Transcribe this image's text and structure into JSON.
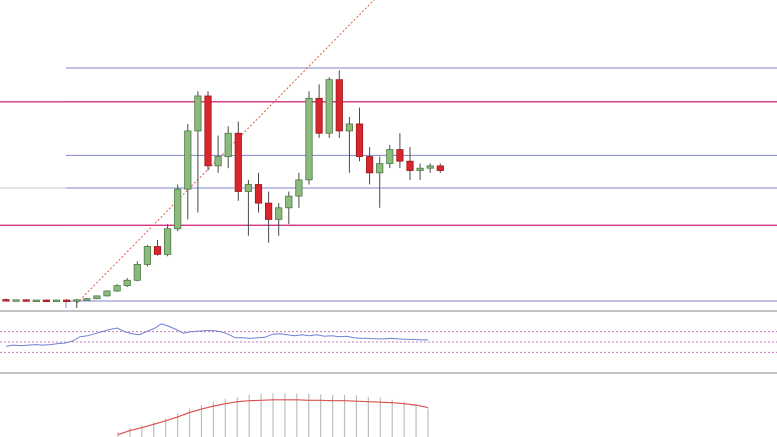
{
  "colors": {
    "bull_fill": "#8cba7e",
    "bull_stroke": "#4d7a42",
    "bear_fill": "#d9262c",
    "bear_stroke": "#9c1a1e",
    "wick": "#4a4a4a",
    "level_line": "#7f86c9",
    "key_level": "#d8357f",
    "trend_line": "#e35a4a",
    "rsi_line": "#6f7fd6",
    "rsi_guides": "#c77ab8",
    "macd_bar": "#bdbdbd",
    "macd_signal": "#d9534f",
    "divider": "#8a8a8a"
  },
  "chart_data": [
    {
      "type": "candlestick",
      "title": "",
      "grid": false,
      "ylim": [
        0,
        100
      ],
      "candles": [
        {
          "o": 0.6,
          "h": 1.0,
          "l": 0.2,
          "c": 0.3
        },
        {
          "o": 0.3,
          "h": 0.7,
          "l": 0.0,
          "c": 0.5
        },
        {
          "o": 0.5,
          "h": 0.8,
          "l": 0.1,
          "c": 0.2
        },
        {
          "o": 0.2,
          "h": 0.6,
          "l": -0.1,
          "c": 0.4
        },
        {
          "o": 0.4,
          "h": 0.7,
          "l": 0.0,
          "c": 0.2
        },
        {
          "o": 0.2,
          "h": 0.6,
          "l": -0.1,
          "c": 0.4
        },
        {
          "o": 0.4,
          "h": 0.8,
          "l": 0.1,
          "c": 0.3
        },
        {
          "o": 0.3,
          "h": 0.9,
          "l": -3.0,
          "c": 0.5
        },
        {
          "o": 0.5,
          "h": 1.2,
          "l": 0.2,
          "c": 1.0
        },
        {
          "o": 1.0,
          "h": 2.4,
          "l": 0.8,
          "c": 2.2
        },
        {
          "o": 2.2,
          "h": 4.6,
          "l": 1.9,
          "c": 4.3
        },
        {
          "o": 4.3,
          "h": 7.2,
          "l": 3.9,
          "c": 6.6
        },
        {
          "o": 6.6,
          "h": 9.8,
          "l": 6.0,
          "c": 8.9
        },
        {
          "o": 8.9,
          "h": 17.0,
          "l": 8.4,
          "c": 15.7
        },
        {
          "o": 15.7,
          "h": 24.0,
          "l": 14.8,
          "c": 23.4
        },
        {
          "o": 23.4,
          "h": 26.2,
          "l": 19.5,
          "c": 20.0
        },
        {
          "o": 20.0,
          "h": 33.0,
          "l": 19.2,
          "c": 31.0
        },
        {
          "o": 31.0,
          "h": 50.0,
          "l": 30.0,
          "c": 48.0
        },
        {
          "o": 48.0,
          "h": 76.0,
          "l": 35.0,
          "c": 73.0
        },
        {
          "o": 73.0,
          "h": 90.0,
          "l": 38.0,
          "c": 88.0
        },
        {
          "o": 88.0,
          "h": 90.0,
          "l": 56.0,
          "c": 58.0
        },
        {
          "o": 58.0,
          "h": 71.0,
          "l": 55.0,
          "c": 62.0
        },
        {
          "o": 62.0,
          "h": 75.0,
          "l": 57.0,
          "c": 72.0
        },
        {
          "o": 72.0,
          "h": 77.0,
          "l": 43.0,
          "c": 47.0
        },
        {
          "o": 47.0,
          "h": 52.0,
          "l": 28.0,
          "c": 50.0
        },
        {
          "o": 50.0,
          "h": 55.0,
          "l": 38.0,
          "c": 42.0
        },
        {
          "o": 42.0,
          "h": 47.0,
          "l": 25.0,
          "c": 35.0
        },
        {
          "o": 35.0,
          "h": 42.0,
          "l": 28.0,
          "c": 40.0
        },
        {
          "o": 40.0,
          "h": 47.0,
          "l": 33.0,
          "c": 45.0
        },
        {
          "o": 45.0,
          "h": 55.0,
          "l": 40.0,
          "c": 52.0
        },
        {
          "o": 52.0,
          "h": 90.0,
          "l": 50.0,
          "c": 87.0
        },
        {
          "o": 87.0,
          "h": 93.0,
          "l": 70.0,
          "c": 72.0
        },
        {
          "o": 72.0,
          "h": 96.0,
          "l": 70.0,
          "c": 95.0
        },
        {
          "o": 95.0,
          "h": 99.0,
          "l": 70.0,
          "c": 73.0
        },
        {
          "o": 73.0,
          "h": 79.0,
          "l": 55.0,
          "c": 76.0
        },
        {
          "o": 76.0,
          "h": 83.0,
          "l": 60.0,
          "c": 62.0
        },
        {
          "o": 62.0,
          "h": 66.0,
          "l": 50.0,
          "c": 55.0
        },
        {
          "o": 55.0,
          "h": 62.0,
          "l": 40.0,
          "c": 59.0
        },
        {
          "o": 59.0,
          "h": 67.0,
          "l": 57.0,
          "c": 65.0
        },
        {
          "o": 65.0,
          "h": 72.0,
          "l": 57.0,
          "c": 60.0
        },
        {
          "o": 60.0,
          "h": 66.0,
          "l": 52.0,
          "c": 56.0
        },
        {
          "o": 56.0,
          "h": 59.0,
          "l": 52.0,
          "c": 57.0
        },
        {
          "o": 57.0,
          "h": 59.0,
          "l": 55.0,
          "c": 58.0
        },
        {
          "o": 58.0,
          "h": 59.0,
          "l": 55.0,
          "c": 56.0
        }
      ],
      "levels": [
        100,
        85.5,
        62.5,
        48.5,
        32.5,
        0
      ],
      "key_levels": [
        85.5,
        32.5
      ],
      "trend_line": [
        {
          "bar": 7,
          "value": -1
        },
        {
          "bar": 40,
          "value": 145
        }
      ]
    },
    {
      "type": "line",
      "title": "",
      "ylim": [
        0,
        100
      ],
      "guides": [
        70,
        50,
        30
      ],
      "series": [
        {
          "values": [
            42,
            44,
            43,
            44,
            45,
            44,
            45,
            47,
            48,
            52,
            60,
            62,
            66,
            70,
            74,
            77,
            70,
            66,
            64,
            70,
            76,
            85,
            80,
            74,
            67,
            70,
            71,
            72,
            72,
            70,
            65,
            58,
            58,
            57,
            58,
            59,
            65,
            66,
            64,
            62,
            64,
            62,
            64,
            61,
            62,
            60,
            61,
            58,
            57,
            57,
            56,
            56,
            57,
            56,
            55,
            55,
            54,
            54
          ]
        }
      ]
    },
    {
      "type": "bar",
      "title": "",
      "ylim": [
        0,
        100
      ],
      "values": [
        10,
        18,
        24,
        30,
        38,
        48,
        58,
        65,
        72,
        78,
        82,
        86,
        88,
        89,
        89,
        89,
        88,
        87,
        86,
        86,
        85,
        82,
        80,
        76,
        72,
        66,
        58
      ],
      "series": [
        {
          "values": [
            5,
            13,
            19,
            26,
            33,
            41,
            50,
            57,
            63,
            68,
            72,
            74,
            75,
            76,
            76,
            76,
            75,
            75,
            74,
            74,
            73,
            72,
            71,
            70,
            68,
            65,
            60
          ]
        }
      ]
    }
  ]
}
